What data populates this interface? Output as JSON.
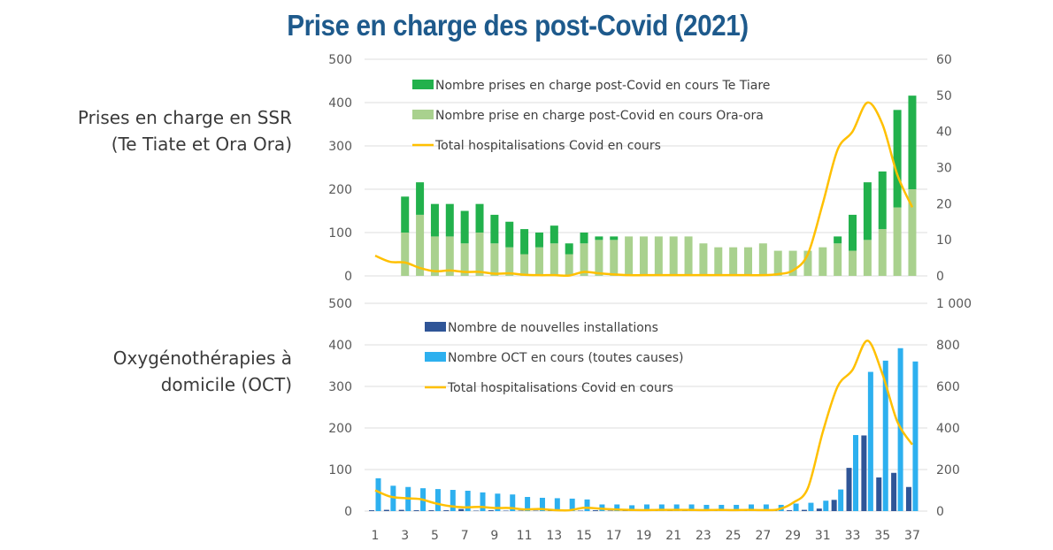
{
  "title": "Prise en charge des post-Covid (2021)",
  "side_labels": {
    "top": [
      "Prises en charge en SSR",
      "(Te Tiate et Ora Ora)"
    ],
    "bottom": [
      "Oxygénothérapies à",
      "domicile (OCT)"
    ]
  },
  "chart_data": [
    {
      "type": "bar",
      "stacked": true,
      "title": "Prises en charge en SSR (Te Tiate et Ora Ora)",
      "xlabel": "",
      "x": [
        1,
        2,
        3,
        4,
        5,
        6,
        7,
        8,
        9,
        10,
        11,
        12,
        13,
        14,
        15,
        16,
        17,
        18,
        19,
        20,
        21,
        22,
        23,
        24,
        25,
        26,
        27,
        28,
        29,
        30,
        31,
        32,
        33,
        34,
        35,
        36,
        37
      ],
      "ylim": [
        0,
        500
      ],
      "yticks": [
        0,
        100,
        200,
        300,
        400,
        500
      ],
      "y2lim": [
        0,
        60
      ],
      "y2ticks": [
        0,
        10,
        20,
        30,
        40,
        50,
        60
      ],
      "grid": true,
      "legend_position": "top-left",
      "series": [
        {
          "name": "Nombre prise en charge post-Covid en cours Ora-ora",
          "type": "bar",
          "axis": "left",
          "color": "#a9d18e",
          "values": [
            null,
            null,
            100,
            141,
            91,
            91,
            75,
            100,
            75,
            66,
            50,
            66,
            75,
            50,
            75,
            83,
            83,
            91,
            91,
            91,
            91,
            91,
            75,
            66,
            66,
            66,
            75,
            58,
            58,
            58,
            66,
            75,
            58,
            83,
            108,
            158,
            200
          ]
        },
        {
          "name": "Nombre prises en charge post-Covid en cours Te Tiare",
          "type": "bar",
          "axis": "left",
          "color": "#22b14c",
          "values": [
            null,
            null,
            83,
            75,
            75,
            75,
            75,
            66,
            66,
            59,
            58,
            34,
            41,
            25,
            25,
            8,
            8,
            0,
            0,
            0,
            0,
            0,
            0,
            0,
            0,
            0,
            0,
            0,
            0,
            0,
            0,
            16,
            83,
            133,
            133,
            225,
            216
          ]
        },
        {
          "name": "Total hospitalisations Covid en cours",
          "type": "line",
          "axis": "right",
          "color": "#ffc000",
          "values": [
            5.6,
            3.9,
            3.7,
            2.2,
            1.3,
            1.5,
            1.1,
            1.1,
            0.6,
            0.7,
            0.3,
            0.2,
            0.2,
            0.1,
            1.1,
            0.7,
            0.4,
            0.2,
            0.2,
            0.2,
            0.2,
            0.2,
            0.2,
            0.2,
            0.2,
            0.2,
            0.2,
            0.5,
            1.5,
            6,
            20,
            35,
            40,
            48,
            42,
            28,
            19
          ]
        }
      ]
    },
    {
      "type": "bar",
      "title": "Oxygénothérapies à domicile (OCT)",
      "xlabel": "",
      "x": [
        1,
        2,
        3,
        4,
        5,
        6,
        7,
        8,
        9,
        10,
        11,
        12,
        13,
        14,
        15,
        16,
        17,
        18,
        19,
        20,
        21,
        22,
        23,
        24,
        25,
        26,
        27,
        28,
        29,
        30,
        31,
        32,
        33,
        34,
        35,
        36,
        37
      ],
      "xticks": [
        "1",
        "3",
        "5",
        "7",
        "9",
        "11",
        "13",
        "15",
        "17",
        "19",
        "21",
        "23",
        "25",
        "27",
        "29",
        "31",
        "33",
        "35",
        "37"
      ],
      "ylim": [
        0,
        500
      ],
      "yticks": [
        0,
        100,
        200,
        300,
        400,
        500
      ],
      "y2lim": [
        0,
        1000
      ],
      "y2ticks": [
        "0",
        "200",
        "400",
        "600",
        "800",
        "1 000"
      ],
      "grid": true,
      "legend_position": "top-left",
      "series": [
        {
          "name": "Nombre de nouvelles installations",
          "type": "bar",
          "axis": "left",
          "color": "#2f5597",
          "values": [
            2,
            3,
            3,
            2,
            2,
            2,
            5,
            1,
            2,
            1,
            1,
            1,
            1,
            1,
            1,
            2,
            1,
            1,
            1,
            1,
            1,
            1,
            1,
            1,
            1,
            1,
            1,
            1,
            2,
            3,
            6,
            27,
            104,
            182,
            81,
            92,
            58
          ]
        },
        {
          "name": "Nombre OCT en cours (toutes causes)",
          "type": "bar",
          "axis": "left",
          "color": "#2db0ef",
          "values": [
            79,
            61,
            58,
            55,
            53,
            51,
            49,
            45,
            42,
            40,
            34,
            32,
            31,
            30,
            28,
            16,
            16,
            14,
            16,
            16,
            16,
            16,
            15,
            15,
            15,
            16,
            16,
            15,
            18,
            20,
            25,
            52,
            183,
            335,
            362,
            392,
            360
          ]
        },
        {
          "name": "Total hospitalisations Covid en cours",
          "type": "line",
          "axis": "right",
          "color": "#ffc000",
          "values": [
            100,
            70,
            62,
            58,
            38,
            24,
            18,
            20,
            15,
            15,
            8,
            10,
            5,
            4,
            16,
            12,
            8,
            6,
            5,
            6,
            6,
            6,
            5,
            6,
            5,
            6,
            5,
            8,
            40,
            110,
            380,
            600,
            680,
            820,
            660,
            430,
            320
          ]
        }
      ]
    }
  ]
}
